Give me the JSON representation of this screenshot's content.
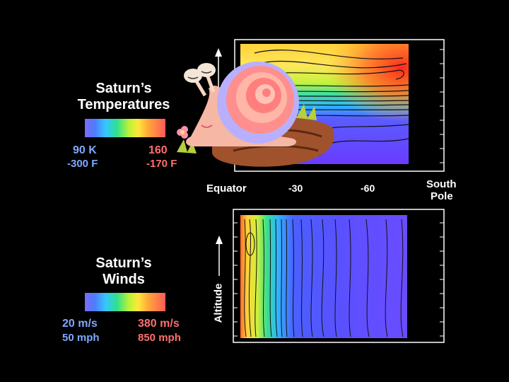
{
  "temperature_panel": {
    "title_line1": "Saturn’s",
    "title_line2": "Temperatures",
    "low_value": "90 K",
    "low_value_f": "-300 F",
    "high_value": "160",
    "high_value_f": "-170 F"
  },
  "wind_panel": {
    "title_line1": "Saturn’s",
    "title_line2": "Winds",
    "low_value": "20 m/s",
    "low_value_mph": "50 mph",
    "high_value": "380 m/s",
    "high_value_mph": "850 mph",
    "y_axis_label": "Altitude"
  },
  "x_axis": {
    "ticks": [
      "Equator",
      "-30",
      "-60"
    ],
    "end_label_line1": "South",
    "end_label_line2": "Pole"
  },
  "colors": {
    "background": "#000000",
    "scale_low": "#7a6cff",
    "scale_high": "#ff5a5a",
    "low_label": "#7fa8ff",
    "high_label": "#ff6f6f"
  },
  "chart_data": [
    {
      "type": "heatmap",
      "title": "Saturn’s Temperatures",
      "xlabel": "",
      "ylabel": "",
      "x_ticks": [
        "Equator",
        "-30",
        "-60",
        "South Pole"
      ],
      "colorscale": {
        "min": "90 K",
        "max": "160",
        "min_f": "-300 F",
        "max_f": "-170 F"
      },
      "note_values": "warmest at top near the south pole, coldest (blue/violet) in the lower layers"
    },
    {
      "type": "heatmap",
      "title": "Saturn’s Winds",
      "xlabel": "",
      "ylabel": "Altitude",
      "x_ticks": [
        "Equator",
        "-30",
        "-60",
        "South Pole"
      ],
      "colorscale": {
        "min": "20 m/s",
        "max": "380 m/s",
        "min_mph": "50 mph",
        "max_mph": "850 mph"
      },
      "note_values": "fastest winds (red/yellow) at the equator, decreasing to blue poleward"
    }
  ]
}
